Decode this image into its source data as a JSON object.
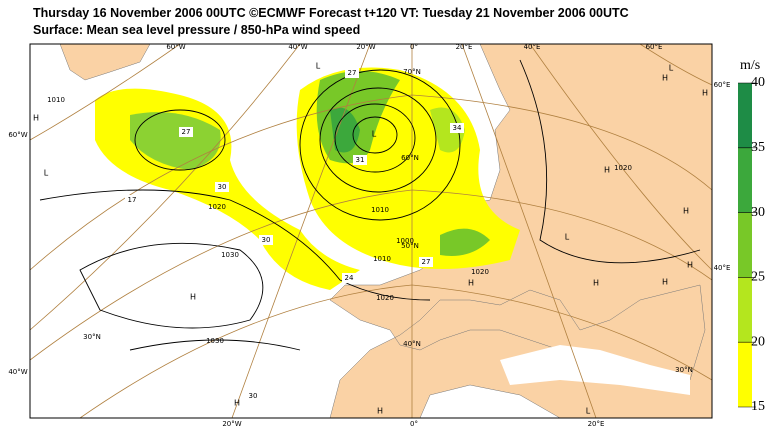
{
  "header": {
    "title": "Thursday 16 November 2006 00UTC ©ECMWF Forecast t+120 VT: Tuesday 21 November 2006 00UTC",
    "subtitle": "Surface: Mean sea level pressure / 850-hPa wind speed"
  },
  "colorbar": {
    "unit": "m/s",
    "ticks": [
      15,
      20,
      25,
      30,
      35,
      40
    ],
    "colors": [
      "#ffff00",
      "#b4e61e",
      "#78c828",
      "#3ca83c",
      "#1e8c46"
    ]
  },
  "map": {
    "coord_labels": [
      "60°W",
      "40°W",
      "20°W",
      "0°",
      "20°E",
      "40°E",
      "60°E",
      "60°W",
      "40°W",
      "60°E",
      "40°E",
      "20°W",
      "0°",
      "20°E",
      "70°N",
      "60°N",
      "50°N",
      "40°N",
      "30°N",
      "30°N"
    ],
    "pressure_centers": [
      "H",
      "L",
      "H",
      "H",
      "L",
      "L",
      "L",
      "H",
      "H",
      "H",
      "H",
      "L",
      "H",
      "H",
      "H",
      "H",
      "L",
      "H"
    ],
    "isobar_labels": [
      "1020",
      "1030",
      "1030",
      "1020",
      "1010",
      "1010",
      "1000",
      "1020",
      "1010",
      "1020"
    ],
    "wind_labels": [
      "27",
      "30",
      "30",
      "24",
      "27",
      "34",
      "30",
      "27",
      "31",
      "17"
    ]
  }
}
